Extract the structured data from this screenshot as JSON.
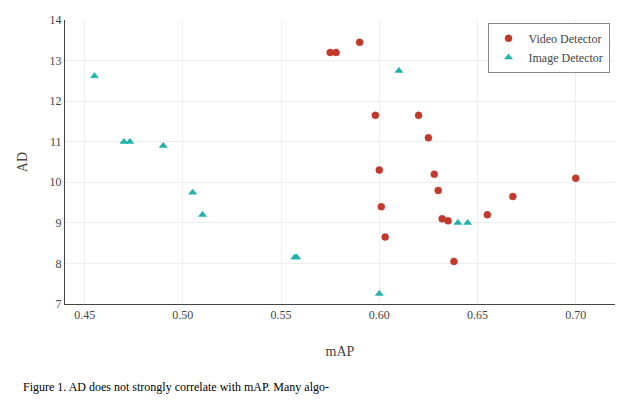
{
  "chart_data": {
    "type": "scatter",
    "xlabel": "mAP",
    "ylabel": "AD",
    "annotations": [
      "Figure 1. AD does not strongly correlate with mAP. Many algo-"
    ],
    "series": [
      {
        "name": "Video Detector",
        "color": "#c0392b",
        "marker": "circle",
        "x": [
          0.575,
          0.578,
          0.59,
          0.598,
          0.6,
          0.601,
          0.603,
          0.62,
          0.625,
          0.628,
          0.63,
          0.632,
          0.635,
          0.638,
          0.655,
          0.668,
          0.7
        ],
        "values": [
          13.2,
          13.2,
          13.45,
          11.65,
          10.3,
          9.4,
          8.65,
          11.65,
          11.1,
          10.2,
          9.8,
          9.1,
          9.05,
          8.05,
          9.2,
          9.65,
          10.1
        ]
      },
      {
        "name": "Image Detector",
        "color": "#20b2aa",
        "marker": "triangle-up",
        "x": [
          0.455,
          0.47,
          0.473,
          0.49,
          0.505,
          0.51,
          0.557,
          0.558,
          0.6,
          0.61,
          0.64,
          0.645
        ],
        "values": [
          12.62,
          11.0,
          11.0,
          10.9,
          9.75,
          9.2,
          8.15,
          8.15,
          7.25,
          12.75,
          9.0,
          9.0
        ]
      }
    ],
    "xlim": [
      0.44,
      0.72
    ],
    "ylim": [
      7.0,
      14.0
    ],
    "xticks": [
      0.45,
      {
        "value": 0.5,
        "label": "0.50"
      },
      0.55,
      {
        "value": 0.6,
        "label": "0.60"
      },
      0.65,
      {
        "value": 0.7,
        "label": "0.70"
      }
    ],
    "yticks": [
      7,
      8,
      9,
      10,
      11,
      12,
      13,
      14
    ],
    "grid": true,
    "legend": "upper right"
  }
}
